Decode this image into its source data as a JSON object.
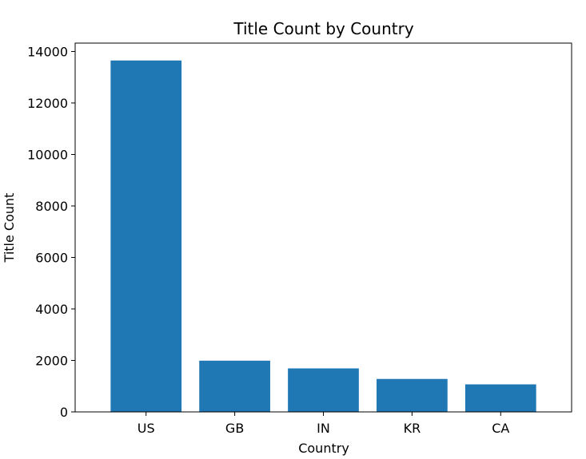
{
  "chart_data": {
    "type": "bar",
    "title": "Title Count by Country",
    "xlabel": "Country",
    "ylabel": "Title Count",
    "categories": [
      "US",
      "GB",
      "IN",
      "KR",
      "CA"
    ],
    "values": [
      13650,
      1990,
      1690,
      1280,
      1070
    ],
    "ylim": [
      0,
      14325
    ],
    "yticks": [
      0,
      2000,
      4000,
      6000,
      8000,
      10000,
      12000,
      14000
    ],
    "bar_color": "#1f77b4",
    "grid": false,
    "legend": false
  }
}
